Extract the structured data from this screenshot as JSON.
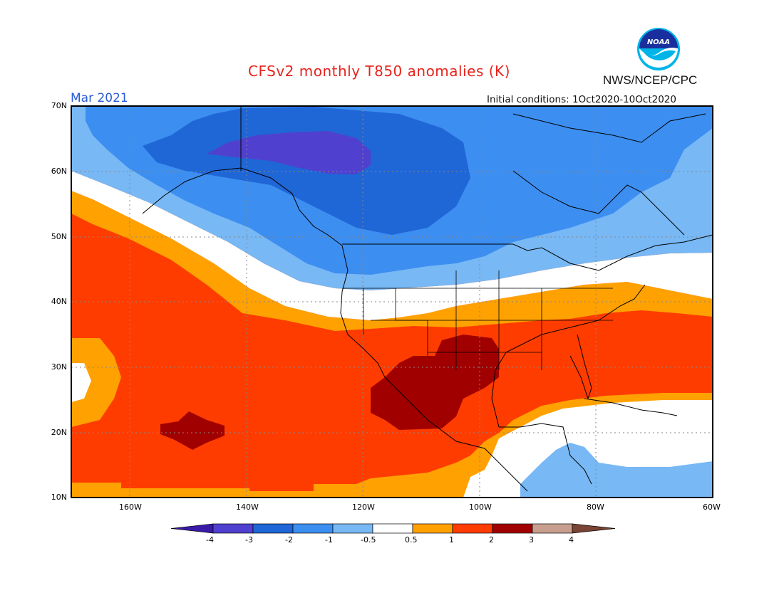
{
  "header": {
    "title": "CFSv2 monthly T850 anomalies (K)",
    "month": "Mar 2021",
    "initial_conditions": "Initial conditions: 1Oct2020-10Oct2020",
    "agency": "NWS/NCEP/CPC",
    "logo_text": "NOAA"
  },
  "map": {
    "lat_labels": [
      "70N",
      "60N",
      "50N",
      "40N",
      "30N",
      "20N",
      "10N"
    ],
    "lon_labels": [
      "160W",
      "140W",
      "120W",
      "100W",
      "80W",
      "60W"
    ],
    "lat_range": [
      10,
      70
    ],
    "lon_range": [
      "170W",
      "60W"
    ],
    "grid": "dotted"
  },
  "legend": {
    "tick_labels": [
      "-4",
      "-3",
      "-2",
      "-1",
      "-0.5",
      "0.5",
      "1",
      "2",
      "3",
      "4"
    ],
    "colors": [
      "#3a1aa8",
      "#5040d0",
      "#1f66d6",
      "#3c8ef0",
      "#77b8f5",
      "#ffffff",
      "#ffa100",
      "#ff3c00",
      "#a10000",
      "#c89f8f",
      "#7a4535"
    ]
  }
}
